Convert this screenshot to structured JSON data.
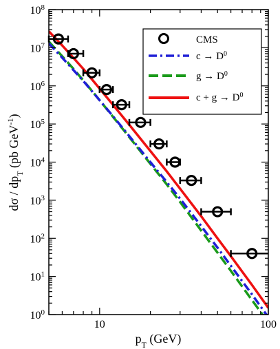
{
  "chart_data": {
    "type": "line",
    "xlabel": "p",
    "xlabel_sub": "T",
    "xlabel_unit": " (GeV)",
    "ylabel": "dσ / dp",
    "ylabel_sub": "T",
    "ylabel_unit": " (pb GeV",
    "ylabel_unit_sup": "-1",
    "ylabel_unit_close": ")",
    "x_scale": "log",
    "y_scale": "log",
    "xlim": [
      5,
      100
    ],
    "ylim": [
      1,
      100000000
    ],
    "x_tick_labels": [
      {
        "value": 10,
        "label": "10"
      },
      {
        "value": 100,
        "label": "100"
      }
    ],
    "y_tick_labels": [
      {
        "value": 1,
        "base": "10",
        "exp": "0"
      },
      {
        "value": 10,
        "base": "10",
        "exp": "1"
      },
      {
        "value": 100,
        "base": "10",
        "exp": "2"
      },
      {
        "value": 1000,
        "base": "10",
        "exp": "3"
      },
      {
        "value": 10000,
        "base": "10",
        "exp": "4"
      },
      {
        "value": 100000,
        "base": "10",
        "exp": "5"
      },
      {
        "value": 1000000,
        "base": "10",
        "exp": "6"
      },
      {
        "value": 10000000,
        "base": "10",
        "exp": "7"
      },
      {
        "value": 100000000,
        "base": "10",
        "exp": "8"
      }
    ],
    "legend_position": "top-right",
    "series": [
      {
        "name": "CMS",
        "kind": "points",
        "color": "#000000",
        "points": [
          {
            "x": 5.7,
            "y": 17000000,
            "xlo": 5.0,
            "xhi": 6.5
          },
          {
            "x": 7.0,
            "y": 7000000,
            "xlo": 6.5,
            "xhi": 8.0
          },
          {
            "x": 9.0,
            "y": 2200000,
            "xlo": 8.0,
            "xhi": 10.0
          },
          {
            "x": 11.0,
            "y": 800000,
            "xlo": 10.0,
            "xhi": 12.0
          },
          {
            "x": 13.5,
            "y": 320000,
            "xlo": 12.0,
            "xhi": 15.0
          },
          {
            "x": 17.5,
            "y": 110000,
            "xlo": 15.0,
            "xhi": 20.0
          },
          {
            "x": 22.5,
            "y": 30000,
            "xlo": 20.0,
            "xhi": 25.0
          },
          {
            "x": 28.0,
            "y": 10000,
            "xlo": 25.0,
            "xhi": 30.0
          },
          {
            "x": 35.0,
            "y": 3300,
            "xlo": 30.0,
            "xhi": 40.0
          },
          {
            "x": 50.0,
            "y": 500,
            "xlo": 40.0,
            "xhi": 60.0
          },
          {
            "x": 80.0,
            "y": 40,
            "xlo": 60.0,
            "xhi": 100.0
          }
        ]
      },
      {
        "name": "c → D",
        "name_sup": "0",
        "kind": "line",
        "style": "dash-dot",
        "color": "#1f1fd6",
        "x": [
          5,
          6,
          7,
          8,
          10,
          12,
          15,
          20,
          25,
          30,
          40,
          50,
          60,
          80,
          100
        ],
        "y": [
          13000000,
          5500000,
          2600000,
          1350000,
          420000,
          160000,
          48000,
          10000,
          3000,
          1100,
          210,
          57,
          19,
          3.4,
          0.85
        ]
      },
      {
        "name": "g → D",
        "name_sup": "0",
        "kind": "line",
        "style": "dashed",
        "color": "#1a9a1a",
        "x": [
          5,
          6,
          7,
          8,
          10,
          12,
          15,
          20,
          25,
          30,
          40,
          50,
          60,
          80,
          100
        ],
        "y": [
          14500000,
          6000000,
          2800000,
          1400000,
          420000,
          155000,
          45000,
          9000,
          2600,
          900,
          160,
          42,
          14,
          2.4,
          0.62
        ]
      },
      {
        "name": "c + g → D",
        "name_sup": "0",
        "kind": "line",
        "style": "solid",
        "color": "#ee1111",
        "x": [
          5,
          6,
          7,
          8,
          10,
          12,
          15,
          20,
          25,
          30,
          40,
          50,
          60,
          80,
          100
        ],
        "y": [
          27000000,
          11500000,
          5400000,
          2800000,
          850000,
          320000,
          95000,
          19500,
          5700,
          2000,
          380,
          100,
          34,
          6,
          1.5
        ]
      }
    ]
  }
}
